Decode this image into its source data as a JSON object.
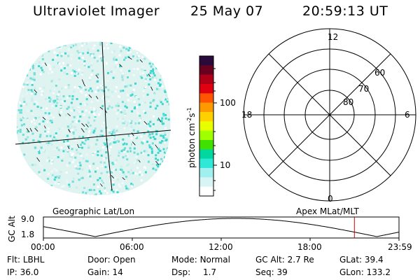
{
  "header": {
    "title": "Ultraviolet Imager",
    "date": "25 May 07",
    "time": "20:59:13 UT"
  },
  "colorbar": {
    "label": "photon cm",
    "label_sup1": "-2",
    "label_s": "s",
    "label_sup2": "-1",
    "ticks": [
      "100",
      "10"
    ],
    "colors": [
      "#2a0a3a",
      "#6a0020",
      "#b00018",
      "#e00010",
      "#ff5500",
      "#ff9900",
      "#ffd000",
      "#e8ff00",
      "#a0ff00",
      "#40e000",
      "#00d8a0",
      "#30e8d8",
      "#9ff0ee",
      "#d8f4f4",
      "#ffffff"
    ]
  },
  "polar": {
    "mlt_labels": {
      "top": "12",
      "left": "18",
      "right": "6",
      "bottom": "0"
    },
    "lat_labels": [
      "60",
      "70",
      "80"
    ]
  },
  "timeline": {
    "ylabel": "GC Alt",
    "yticks": [
      "9.0",
      "1.8"
    ],
    "left_title": "Geographic Lat/Lon",
    "right_title": "Apex MLat/MLT",
    "xticks": [
      "00:00",
      "06:00",
      "12:00",
      "18:00",
      "23:59"
    ],
    "marker_hour": 20.99
  },
  "info": {
    "flt_label": "Flt:",
    "flt_value": "LBHL",
    "door_label": "Door:",
    "door_value": "Open",
    "mode_label": "Mode:",
    "mode_value": "Normal",
    "gcalt_label": "GC Alt:",
    "gcalt_value": "2.7 Re",
    "glat_label": "GLat:",
    "glat_value": "39.4",
    "ip_label": "IP:",
    "ip_value": "36.0",
    "gain_label": "Gain:",
    "gain_value": "14",
    "dsp_label": "Dsp:",
    "dsp_value": "1.7",
    "seq_label": "Seq:",
    "seq_value": "39",
    "glon_label": "GLon:",
    "glon_value": "133.2"
  }
}
